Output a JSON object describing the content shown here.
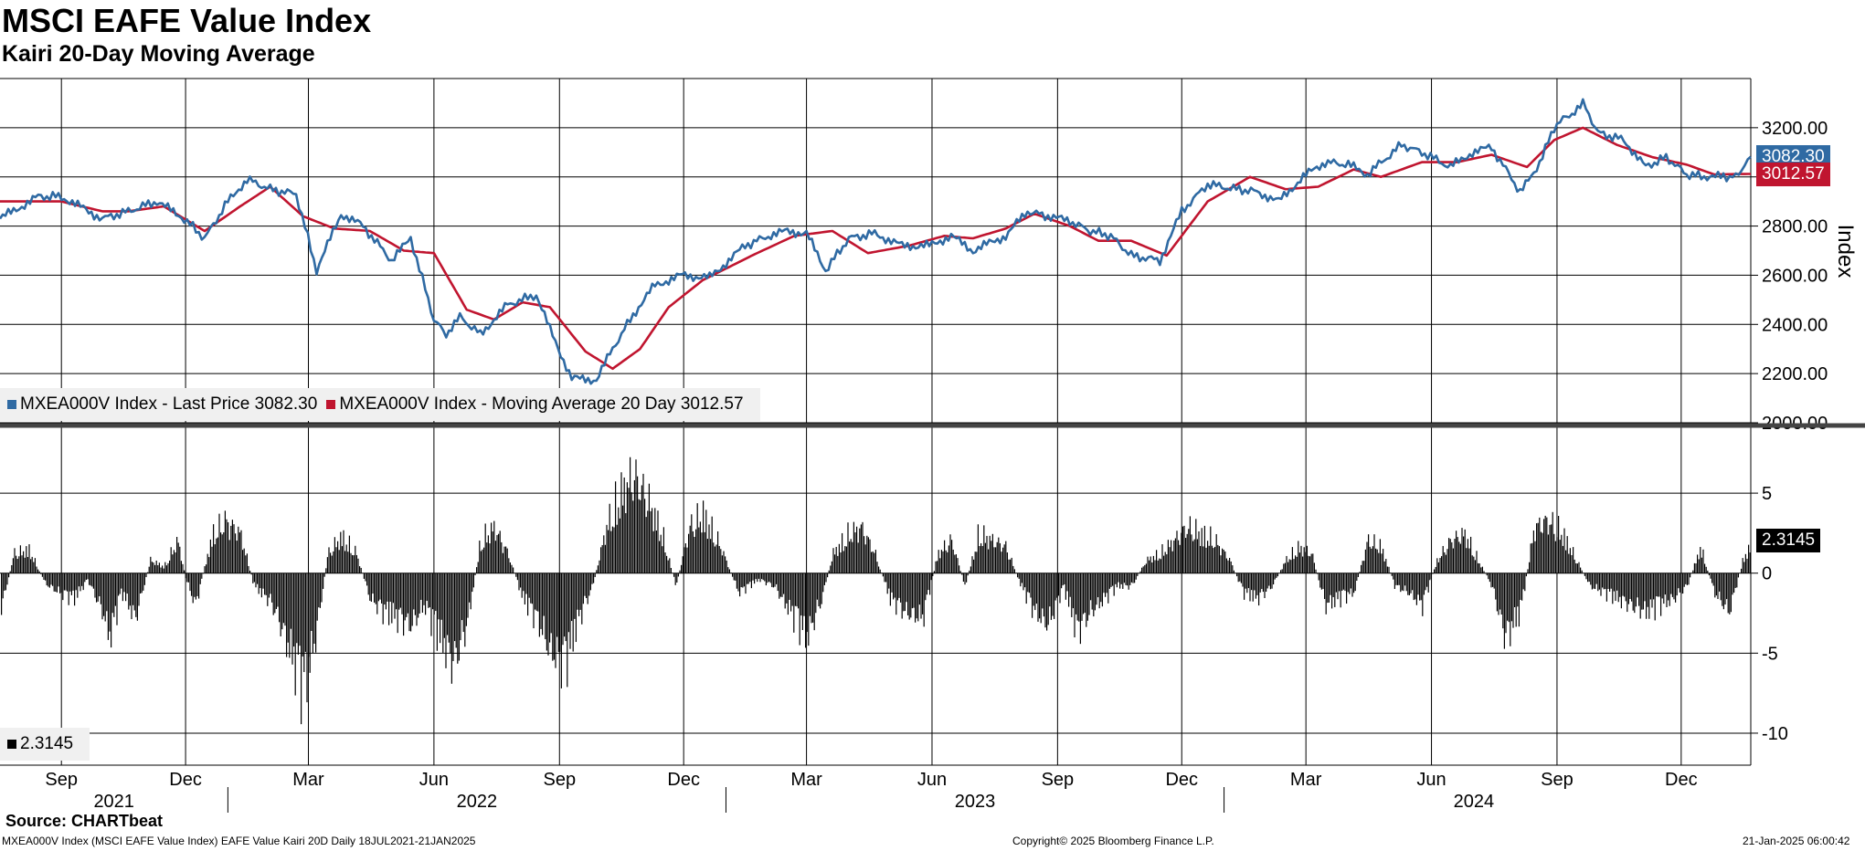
{
  "title": "MSCI EAFE Value Index",
  "subtitle": "Kairi 20-Day Moving Average",
  "source": "Source: CHARTbeat",
  "footer_left": "MXEA000V Index (MSCI EAFE Value Index) EAFE Value Kairi 20D  Daily 18JUL2021-21JAN2025",
  "footer_center": "Copyright© 2025 Bloomberg Finance L.P.",
  "footer_right": "21-Jan-2025 06:00:42",
  "colors": {
    "price": "#2f6aa3",
    "ma": "#c0152f",
    "kairi": "#000000",
    "grid": "#000000"
  },
  "legend_top": {
    "price": "MXEA000V Index - Last Price 3082.30",
    "ma": "MXEA000V Index - Moving Average 20 Day 3012.57"
  },
  "legend_bottom": {
    "kairi": "2.3145"
  },
  "chart_data": [
    {
      "type": "line",
      "ylabel": "Index",
      "ylim": [
        2000,
        3400
      ],
      "yticks": [
        2000,
        2200,
        2400,
        2600,
        2800,
        3000,
        3200
      ],
      "grid": true,
      "legend": "bottom-left",
      "last_values": {
        "price": "3082.30",
        "ma": "3012.57"
      },
      "series": [
        {
          "name": "MXEA000V Index - Last Price",
          "x": [
            "2021-07-18",
            "2021-08-15",
            "2021-09-01",
            "2021-10-01",
            "2021-10-20",
            "2021-11-10",
            "2021-11-30",
            "2021-12-15",
            "2022-01-01",
            "2022-01-15",
            "2022-02-01",
            "2022-02-20",
            "2022-03-07",
            "2022-03-25",
            "2022-04-10",
            "2022-05-01",
            "2022-05-15",
            "2022-06-01",
            "2022-06-10",
            "2022-06-20",
            "2022-07-05",
            "2022-07-25",
            "2022-08-15",
            "2022-08-25",
            "2022-09-10",
            "2022-09-28",
            "2022-10-10",
            "2022-10-25",
            "2022-11-10",
            "2022-11-30",
            "2022-12-20",
            "2023-01-15",
            "2023-02-01",
            "2023-02-15",
            "2023-03-01",
            "2023-03-15",
            "2023-04-01",
            "2023-04-20",
            "2023-05-10",
            "2023-05-30",
            "2023-06-15",
            "2023-07-01",
            "2023-07-25",
            "2023-08-10",
            "2023-08-25",
            "2023-09-10",
            "2023-09-25",
            "2023-10-10",
            "2023-10-25",
            "2023-11-15",
            "2023-12-01",
            "2023-12-20",
            "2024-01-10",
            "2024-01-25",
            "2024-02-10",
            "2024-02-28",
            "2024-03-15",
            "2024-04-01",
            "2024-04-15",
            "2024-05-10",
            "2024-05-25",
            "2024-06-15",
            "2024-07-01",
            "2024-07-15",
            "2024-08-05",
            "2024-08-15",
            "2024-09-01",
            "2024-09-10",
            "2024-09-20",
            "2024-10-01",
            "2024-10-20",
            "2024-11-05",
            "2024-11-20",
            "2024-12-05",
            "2024-12-20",
            "2025-01-01",
            "2025-01-10",
            "2025-01-21"
          ],
          "values": [
            2830,
            2920,
            2920,
            2830,
            2860,
            2900,
            2830,
            2750,
            2900,
            2990,
            2950,
            2930,
            2620,
            2850,
            2800,
            2660,
            2750,
            2420,
            2360,
            2430,
            2360,
            2480,
            2520,
            2380,
            2180,
            2175,
            2300,
            2440,
            2560,
            2600,
            2590,
            2720,
            2760,
            2780,
            2770,
            2620,
            2750,
            2770,
            2720,
            2720,
            2760,
            2700,
            2760,
            2860,
            2840,
            2820,
            2780,
            2760,
            2680,
            2660,
            2860,
            2970,
            2950,
            2940,
            2900,
            3000,
            3060,
            3050,
            3010,
            3130,
            3100,
            3040,
            3100,
            3120,
            2940,
            3010,
            3220,
            3250,
            3300,
            3180,
            3150,
            3040,
            3080,
            3010,
            3000,
            3000,
            3000,
            3082
          ]
        },
        {
          "name": "MXEA000V Index - Moving Average 20 Day",
          "x": [
            "2021-07-18",
            "2021-09-01",
            "2021-10-01",
            "2021-10-20",
            "2021-11-15",
            "2021-12-15",
            "2022-01-10",
            "2022-02-01",
            "2022-02-25",
            "2022-03-20",
            "2022-04-15",
            "2022-05-10",
            "2022-06-01",
            "2022-06-25",
            "2022-07-15",
            "2022-08-05",
            "2022-08-25",
            "2022-09-20",
            "2022-10-10",
            "2022-10-30",
            "2022-11-20",
            "2022-12-15",
            "2023-01-20",
            "2023-02-20",
            "2023-03-20",
            "2023-04-15",
            "2023-05-15",
            "2023-06-10",
            "2023-07-01",
            "2023-07-25",
            "2023-08-15",
            "2023-09-10",
            "2023-10-01",
            "2023-10-25",
            "2023-11-20",
            "2023-12-20",
            "2024-01-20",
            "2024-02-15",
            "2024-03-10",
            "2024-04-05",
            "2024-04-25",
            "2024-05-25",
            "2024-06-20",
            "2024-07-15",
            "2024-08-10",
            "2024-08-30",
            "2024-09-20",
            "2024-10-15",
            "2024-11-10",
            "2024-12-05",
            "2024-12-25",
            "2025-01-21"
          ],
          "values": [
            2900,
            2900,
            2860,
            2860,
            2880,
            2780,
            2880,
            2960,
            2840,
            2790,
            2780,
            2700,
            2690,
            2460,
            2420,
            2490,
            2470,
            2290,
            2220,
            2300,
            2470,
            2580,
            2680,
            2760,
            2780,
            2690,
            2720,
            2760,
            2750,
            2790,
            2850,
            2800,
            2740,
            2740,
            2680,
            2900,
            3000,
            2950,
            2960,
            3030,
            3000,
            3060,
            3060,
            3090,
            3040,
            3150,
            3200,
            3130,
            3080,
            3050,
            3010,
            3012
          ]
        }
      ]
    },
    {
      "type": "bar",
      "ylim": [
        -12,
        9
      ],
      "yticks": [
        -10,
        -5,
        0,
        5
      ],
      "legend": "bottom-left",
      "last_value": "2.3145",
      "series": [
        {
          "name": "2.3145",
          "x": [
            "2021-07-18",
            "2021-07-28",
            "2021-08-08",
            "2021-08-20",
            "2021-08-30",
            "2021-09-10",
            "2021-09-20",
            "2021-10-01",
            "2021-10-06",
            "2021-10-15",
            "2021-10-25",
            "2021-11-05",
            "2021-11-15",
            "2021-11-25",
            "2021-12-01",
            "2021-12-08",
            "2021-12-20",
            "2021-12-30",
            "2022-01-10",
            "2022-01-20",
            "2022-01-30",
            "2022-02-05",
            "2022-02-15",
            "2022-02-25",
            "2022-03-06",
            "2022-03-15",
            "2022-03-25",
            "2022-04-05",
            "2022-04-15",
            "2022-04-25",
            "2022-05-05",
            "2022-05-15",
            "2022-05-25",
            "2022-06-05",
            "2022-06-15",
            "2022-06-25",
            "2022-07-05",
            "2022-07-15",
            "2022-07-25",
            "2022-08-05",
            "2022-08-15",
            "2022-08-25",
            "2022-09-05",
            "2022-09-15",
            "2022-09-25",
            "2022-10-05",
            "2022-10-15",
            "2022-10-25",
            "2022-11-05",
            "2022-11-15",
            "2022-11-25",
            "2022-12-05",
            "2022-12-15",
            "2022-12-28",
            "2023-01-10",
            "2023-01-25",
            "2023-02-05",
            "2023-02-20",
            "2023-03-01",
            "2023-03-12",
            "2023-03-20",
            "2023-04-01",
            "2023-04-10",
            "2023-04-20",
            "2023-05-01",
            "2023-05-12",
            "2023-05-25",
            "2023-06-05",
            "2023-06-15",
            "2023-06-25",
            "2023-07-05",
            "2023-07-15",
            "2023-07-25",
            "2023-08-05",
            "2023-08-15",
            "2023-08-25",
            "2023-09-05",
            "2023-09-15",
            "2023-09-25",
            "2023-10-05",
            "2023-10-15",
            "2023-10-25",
            "2023-11-05",
            "2023-11-15",
            "2023-11-25",
            "2023-12-05",
            "2023-12-15",
            "2023-12-25",
            "2024-01-05",
            "2024-01-15",
            "2024-01-25",
            "2024-02-05",
            "2024-02-15",
            "2024-02-25",
            "2024-03-05",
            "2024-03-15",
            "2024-03-25",
            "2024-04-05",
            "2024-04-15",
            "2024-04-25",
            "2024-05-05",
            "2024-05-15",
            "2024-05-25",
            "2024-06-05",
            "2024-06-15",
            "2024-06-25",
            "2024-07-05",
            "2024-07-15",
            "2024-07-25",
            "2024-08-05",
            "2024-08-15",
            "2024-08-25",
            "2024-09-05",
            "2024-09-15",
            "2024-09-25",
            "2024-10-05",
            "2024-10-15",
            "2024-10-25",
            "2024-11-05",
            "2024-11-15",
            "2024-11-25",
            "2024-12-05",
            "2024-12-15",
            "2024-12-25",
            "2025-01-05",
            "2025-01-15",
            "2025-01-21"
          ],
          "values": [
            -3,
            1.5,
            1.8,
            -0.8,
            -1.5,
            -2,
            -0.5,
            -3,
            -5,
            -1.5,
            -3.5,
            1,
            0.5,
            2.5,
            -0.5,
            -2.5,
            2.8,
            4,
            3,
            -1,
            -2,
            -3,
            -6,
            -9,
            -5,
            1.5,
            2.8,
            1.5,
            -2,
            -3,
            -3.5,
            -4,
            -2.5,
            -5,
            -7,
            -4,
            2.5,
            3.5,
            1.5,
            -2,
            -3.5,
            -6,
            -7,
            -3.5,
            -1,
            3.5,
            6,
            7.5,
            5.5,
            3,
            -1,
            3.5,
            4.5,
            2,
            -1.5,
            -0.5,
            -1,
            -3.5,
            -5,
            -2,
            1.5,
            3,
            3.5,
            1.5,
            -2,
            -3,
            -3.5,
            1.5,
            2.5,
            -1,
            3,
            2.5,
            2,
            -1,
            -3,
            -4,
            -1,
            -4.5,
            -3,
            -2,
            -1,
            -1,
            1,
            1.5,
            2.5,
            3.5,
            3,
            2.5,
            1,
            -1.5,
            -2,
            -1,
            1,
            2,
            1.5,
            -2.5,
            -2,
            -1.5,
            2.5,
            2,
            -1,
            -1.5,
            -2.5,
            1,
            2.5,
            3,
            1,
            -1,
            -5,
            -3,
            3.5,
            4,
            3,
            1,
            -1,
            -1.5,
            -2,
            -2.5,
            -3,
            -2.5,
            -2,
            -1,
            2,
            -1.5,
            -3,
            1,
            2.3145
          ]
        }
      ]
    }
  ],
  "x_axis": {
    "months": [
      {
        "label": "Sep",
        "date": "2021-09-01"
      },
      {
        "label": "Dec",
        "date": "2021-12-01"
      },
      {
        "label": "Mar",
        "date": "2022-03-01"
      },
      {
        "label": "Jun",
        "date": "2022-06-01"
      },
      {
        "label": "Sep",
        "date": "2022-09-01"
      },
      {
        "label": "Dec",
        "date": "2022-12-01"
      },
      {
        "label": "Mar",
        "date": "2023-03-01"
      },
      {
        "label": "Jun",
        "date": "2023-06-01"
      },
      {
        "label": "Sep",
        "date": "2023-09-01"
      },
      {
        "label": "Dec",
        "date": "2023-12-01"
      },
      {
        "label": "Mar",
        "date": "2024-03-01"
      },
      {
        "label": "Jun",
        "date": "2024-06-01"
      },
      {
        "label": "Sep",
        "date": "2024-09-01"
      },
      {
        "label": "Dec",
        "date": "2024-12-01"
      }
    ],
    "years": [
      {
        "label": "2021",
        "date": "2021-07-18",
        "end": "2022-01-01"
      },
      {
        "label": "2022",
        "date": "2022-01-01",
        "end": "2023-01-01"
      },
      {
        "label": "2023",
        "date": "2023-01-01",
        "end": "2024-01-01"
      },
      {
        "label": "2024",
        "date": "2024-01-01",
        "end": "2025-01-01"
      }
    ],
    "start": "2021-07-18",
    "end": "2025-01-21"
  }
}
